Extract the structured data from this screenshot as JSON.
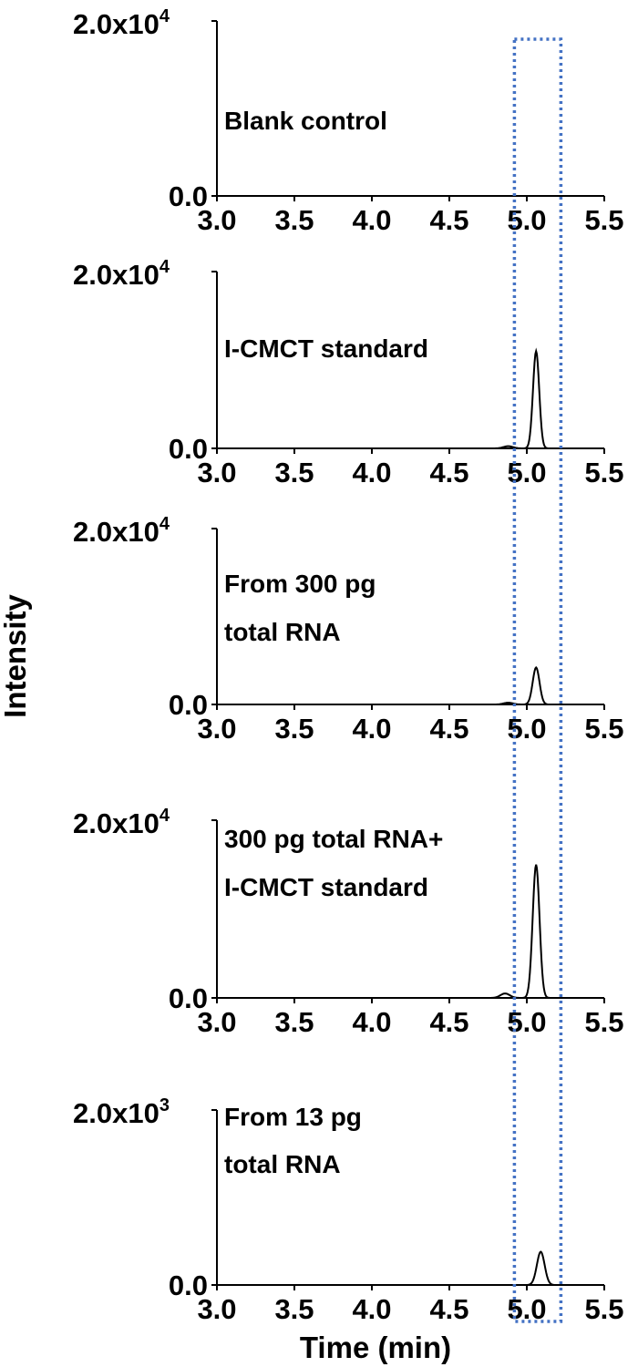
{
  "chart_data": {
    "type": "line",
    "xlabel": "Time (min)",
    "ylabel": "Intensity",
    "xlim": [
      3.0,
      5.5
    ],
    "x_ticks": [
      "3.0",
      "3.5",
      "4.0",
      "4.5",
      "5.0",
      "5.5"
    ],
    "highlight_region": {
      "x_range": [
        4.92,
        5.22
      ],
      "style": "dotted",
      "color": "#4472c4"
    },
    "line_color": "#000000",
    "panels": [
      {
        "label_lines": [
          "Blank control"
        ],
        "ylim": [
          0,
          20000
        ],
        "y_tick_bottom": "0.0",
        "y_tick_top_mantissa": "2.0x10",
        "y_tick_top_exponent": "4",
        "peak": null
      },
      {
        "label_lines": [
          "I-CMCT standard"
        ],
        "ylim": [
          0,
          20000
        ],
        "y_tick_bottom": "0.0",
        "y_tick_top_mantissa": "2.0x10",
        "y_tick_top_exponent": "4",
        "peak": {
          "center": 5.06,
          "height": 11000,
          "width": 0.02,
          "shoulder": {
            "center": 4.88,
            "height": 250,
            "width": 0.03
          }
        }
      },
      {
        "label_lines": [
          "From 300 pg",
          "total RNA"
        ],
        "ylim": [
          0,
          20000
        ],
        "y_tick_bottom": "0.0",
        "y_tick_top_mantissa": "2.0x10",
        "y_tick_top_exponent": "4",
        "peak": {
          "center": 5.06,
          "height": 4200,
          "width": 0.022,
          "shoulder": {
            "center": 4.88,
            "height": 200,
            "width": 0.03
          }
        }
      },
      {
        "label_lines": [
          "300 pg total RNA+",
          "I-CMCT standard"
        ],
        "ylim": [
          0,
          20000
        ],
        "y_tick_bottom": "0.0",
        "y_tick_top_mantissa": "2.0x10",
        "y_tick_top_exponent": "4",
        "peak": {
          "center": 5.06,
          "height": 15000,
          "width": 0.022,
          "shoulder": {
            "center": 4.86,
            "height": 500,
            "width": 0.03
          }
        }
      },
      {
        "label_lines": [
          "From 13 pg",
          "total RNA"
        ],
        "ylim": [
          0,
          2000
        ],
        "y_tick_bottom": "0.0",
        "y_tick_top_mantissa": "2.0x10",
        "y_tick_top_exponent": "3",
        "peak": {
          "center": 5.09,
          "height": 380,
          "width": 0.025,
          "shoulder": null
        }
      }
    ]
  }
}
